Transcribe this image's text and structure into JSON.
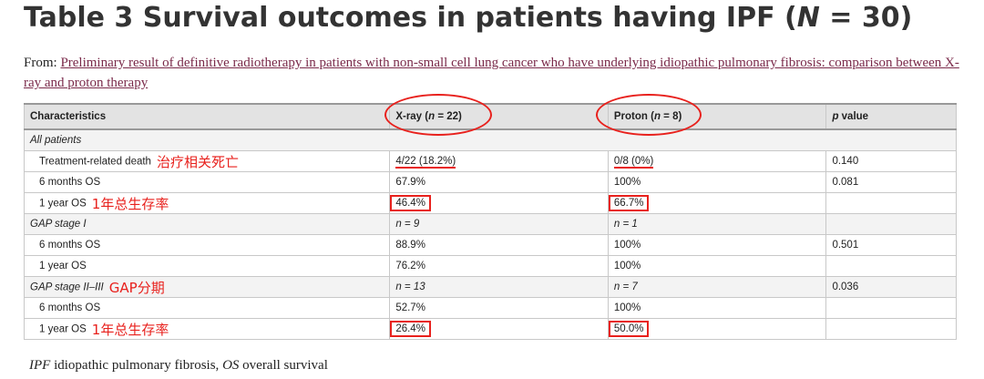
{
  "title": "Table 3 Survival outcomes in patients having IPF (",
  "title_n": "N",
  "title_tail": " = 30)",
  "from_label": "From: ",
  "from_link": "Preliminary result of definitive radiotherapy in patients with non-small cell lung cancer who have underlying idiopathic pulmonary fibrosis: comparison between X-ray and proton therapy",
  "header": {
    "characteristics": "Characteristics",
    "xray": "X-ray (",
    "xray_n": "n",
    "xray_tail": " = 22)",
    "proton": "Proton (",
    "proton_n": "n",
    "proton_tail": " = 8)",
    "p": "p",
    "p_tail": " value"
  },
  "rows": {
    "all_patients": "All patients",
    "trd_label": "Treatment-related death",
    "trd_ann": "治疗相关死亡",
    "trd_xray": "4/22 (18.2%)",
    "trd_proton": "0/8 (0%)",
    "trd_p": "0.140",
    "all_6m_label": "6 months OS",
    "all_6m_xray": "67.9%",
    "all_6m_proton": "100%",
    "all_6m_p": "0.081",
    "all_1y_label": "1 year OS",
    "all_1y_ann": "1年总生存率",
    "all_1y_xray": "46.4%",
    "all_1y_proton": "66.7%",
    "gap1_label": "GAP stage I",
    "gap1_xray": "n = 9",
    "gap1_proton": "n = 1",
    "gap1_6m_label": "6 months OS",
    "gap1_6m_xray": "88.9%",
    "gap1_6m_proton": "100%",
    "gap1_6m_p": "0.501",
    "gap1_1y_label": "1 year OS",
    "gap1_1y_xray": "76.2%",
    "gap1_1y_proton": "100%",
    "gap23_label": "GAP stage II–III",
    "gap23_ann": "GAP分期",
    "gap23_xray": "n = 13",
    "gap23_proton": "n = 7",
    "gap23_p": "0.036",
    "gap23_6m_label": "6 months OS",
    "gap23_6m_xray": "52.7%",
    "gap23_6m_proton": "100%",
    "gap23_1y_label": "1 year OS",
    "gap23_1y_ann": "1年总生存率",
    "gap23_1y_xray": "26.4%",
    "gap23_1y_proton": "50.0%"
  },
  "footnote": {
    "ipf": "IPF",
    "ipf_text": " idiopathic pulmonary fibrosis, ",
    "os": "OS",
    "os_text": " overall survival"
  }
}
